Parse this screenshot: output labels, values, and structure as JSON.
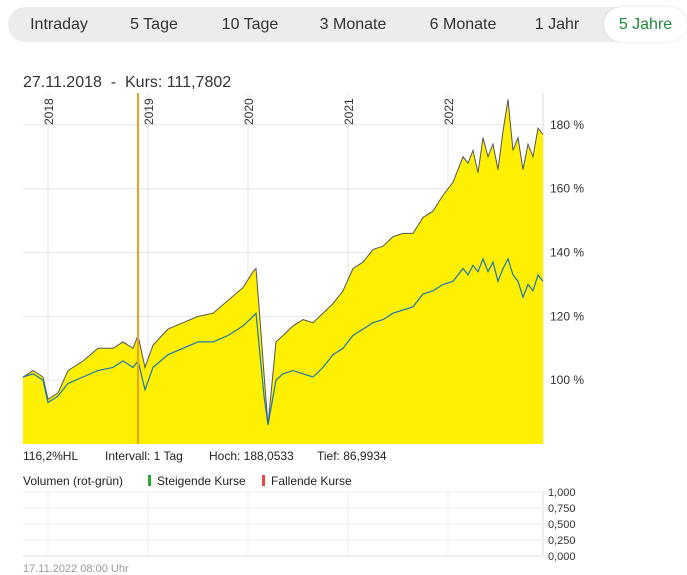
{
  "tabs": [
    {
      "label": "Intraday",
      "active": false
    },
    {
      "label": "5 Tage",
      "active": false
    },
    {
      "label": "10 Tage",
      "active": false
    },
    {
      "label": "3 Monate",
      "active": false
    },
    {
      "label": "6 Monate",
      "active": false
    },
    {
      "label": "1 Jahr",
      "active": false
    },
    {
      "label": "5 Jahre",
      "active": true
    }
  ],
  "header": {
    "date": "27.11.2018",
    "separator": "-",
    "price_label": "Kurs: 111,7802"
  },
  "stats": {
    "hl": "116,2%HL",
    "interval": "Intervall: 1 Tag",
    "high": "Hoch: 188,0533",
    "low": "Tief: 86,9934"
  },
  "volume": {
    "title": "Volumen (rot-grün)",
    "legend_up": "Steigende Kurse",
    "legend_down": "Fallende Kurse",
    "y_ticks": [
      "1,000",
      "0,750",
      "0,500",
      "0,250",
      "0,000"
    ]
  },
  "footer": {
    "date": "17.11.2022 08:00 Uhr"
  },
  "colors": {
    "active_tab": "#1e8a3c",
    "area_fill": "#ffef00",
    "main_line": "#555555",
    "benchmark_line": "#1f77b4",
    "marker_line": "#f0a020",
    "legend_up": "#22aa33",
    "legend_down": "#ee4444"
  },
  "chart_data": {
    "type": "area",
    "x_unit": "year",
    "xlim": [
      2017.75,
      2022.95
    ],
    "ylim": [
      80,
      190
    ],
    "y_ticks": [
      100,
      120,
      140,
      160,
      180
    ],
    "y_tick_labels": [
      "100 %",
      "120 %",
      "140 %",
      "160 %",
      "180 %"
    ],
    "x_ticks": [
      2018,
      2019,
      2020,
      2021,
      2022
    ],
    "x_tick_labels": [
      "2018",
      "2019",
      "2020",
      "2021",
      "2022"
    ],
    "cursor_x": 2018.9,
    "grid": true,
    "series": [
      {
        "kind": "area",
        "x": [
          2017.75,
          2017.85,
          2017.95,
          2018.0,
          2018.1,
          2018.2,
          2018.35,
          2018.5,
          2018.65,
          2018.75,
          2018.85,
          2018.9,
          2018.97,
          2019.05,
          2019.2,
          2019.35,
          2019.5,
          2019.65,
          2019.8,
          2019.95,
          2020.05,
          2020.08,
          2020.12,
          2020.16,
          2020.2,
          2020.28,
          2020.35,
          2020.45,
          2020.55,
          2020.65,
          2020.75,
          2020.85,
          2020.95,
          2021.05,
          2021.15,
          2021.25,
          2021.35,
          2021.45,
          2021.55,
          2021.65,
          2021.75,
          2021.85,
          2021.95,
          2022.05,
          2022.15,
          2022.2,
          2022.25,
          2022.3,
          2022.35,
          2022.4,
          2022.45,
          2022.5,
          2022.55,
          2022.6,
          2022.65,
          2022.7,
          2022.75,
          2022.8,
          2022.85,
          2022.9,
          2022.95
        ],
        "y": [
          101,
          103,
          101,
          94,
          96,
          103,
          106,
          110,
          110,
          112,
          110,
          114,
          104,
          111,
          116,
          118,
          120,
          121,
          125,
          129,
          134,
          135,
          119,
          102,
          86,
          112,
          114,
          117,
          119,
          118,
          121,
          124,
          128,
          135,
          137,
          141,
          142,
          145,
          146,
          146,
          151,
          153,
          158,
          162,
          170,
          168,
          172,
          165,
          176,
          170,
          174,
          166,
          178,
          188,
          172,
          176,
          166,
          174,
          170,
          179,
          177
        ]
      },
      {
        "kind": "line",
        "x": [
          2017.75,
          2017.85,
          2017.95,
          2018.0,
          2018.1,
          2018.2,
          2018.35,
          2018.5,
          2018.65,
          2018.75,
          2018.85,
          2018.9,
          2018.97,
          2019.05,
          2019.2,
          2019.35,
          2019.5,
          2019.65,
          2019.8,
          2019.95,
          2020.05,
          2020.08,
          2020.12,
          2020.16,
          2020.2,
          2020.28,
          2020.35,
          2020.45,
          2020.55,
          2020.65,
          2020.75,
          2020.85,
          2020.95,
          2021.05,
          2021.15,
          2021.25,
          2021.35,
          2021.45,
          2021.55,
          2021.65,
          2021.75,
          2021.85,
          2021.95,
          2022.05,
          2022.15,
          2022.2,
          2022.25,
          2022.3,
          2022.35,
          2022.4,
          2022.45,
          2022.5,
          2022.55,
          2022.6,
          2022.65,
          2022.7,
          2022.75,
          2022.8,
          2022.85,
          2022.9,
          2022.95
        ],
        "y": [
          101,
          102,
          100,
          93,
          95,
          99,
          101,
          103,
          104,
          106,
          104,
          106,
          97,
          104,
          108,
          110,
          112,
          112,
          114,
          117,
          120,
          121,
          108,
          95,
          86,
          100,
          102,
          103,
          102,
          101,
          104,
          108,
          110,
          114,
          116,
          118,
          119,
          121,
          122,
          123,
          127,
          128,
          130,
          131,
          135,
          133,
          136,
          134,
          138,
          134,
          137,
          131,
          135,
          138,
          133,
          131,
          126,
          130,
          128,
          133,
          131
        ]
      }
    ]
  }
}
